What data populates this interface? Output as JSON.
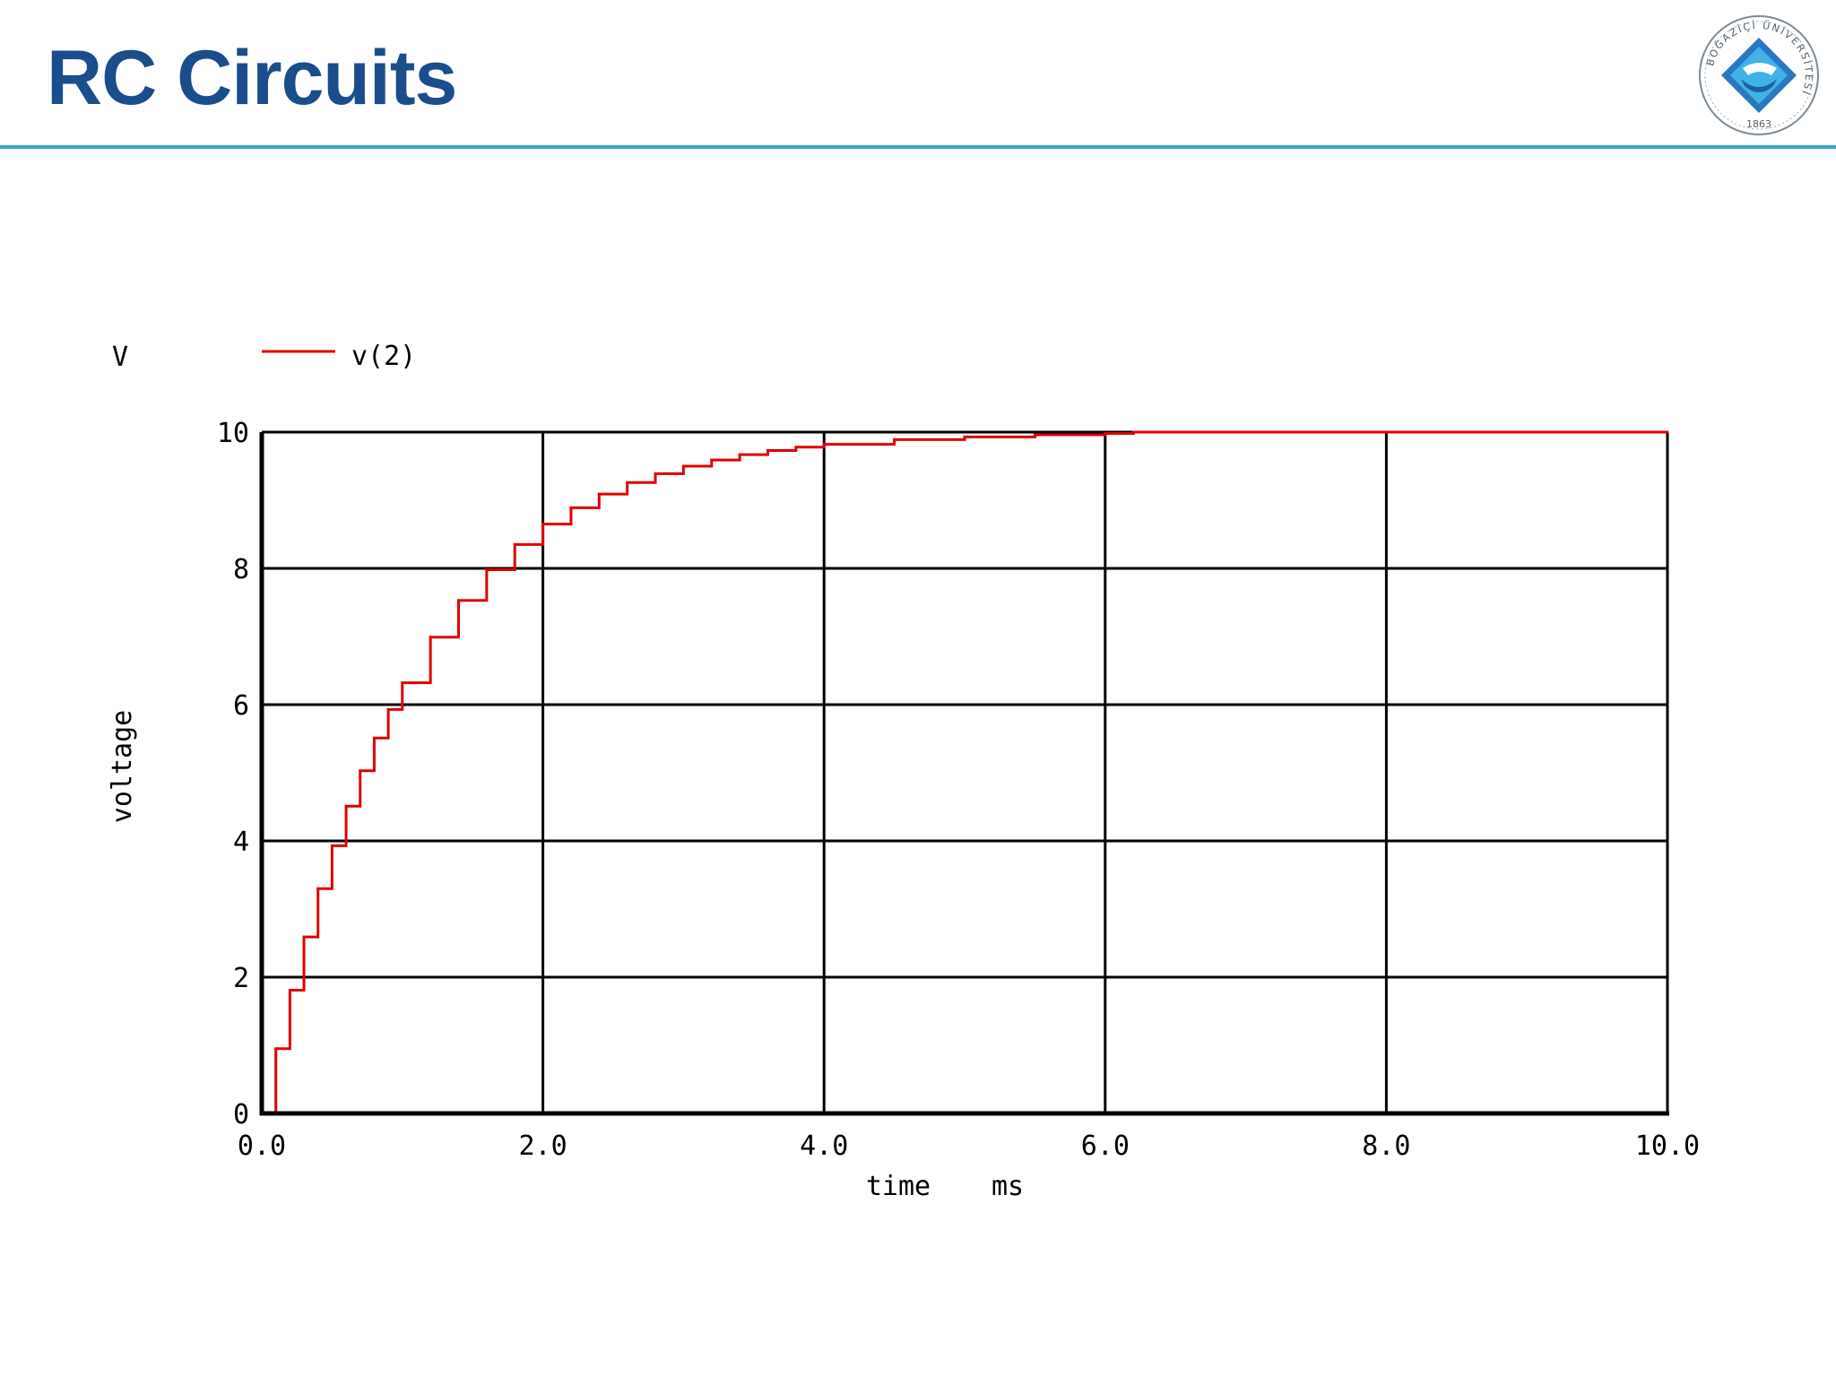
{
  "slide": {
    "title": "RC Circuits",
    "logo_text": "BOĞAZİÇİ ÜNİVERSİTESİ",
    "logo_year": "1863"
  },
  "colors": {
    "title": "#1b4d8c",
    "rule": "#3ba0d5",
    "series": "#e00000",
    "axes": "#000000",
    "logo_blue": "#2a78c0",
    "logo_light": "#3fb3e6"
  },
  "chart_data": {
    "type": "line",
    "unit_label": "V",
    "ylabel": "voltage",
    "xlabel_parts": [
      "time",
      "ms"
    ],
    "xlim": [
      0,
      10
    ],
    "ylim": [
      0,
      10
    ],
    "xticks": [
      0,
      2,
      4,
      6,
      8,
      10
    ],
    "xtick_labels": [
      "0.0",
      "2.0",
      "4.0",
      "6.0",
      "8.0",
      "10.0"
    ],
    "yticks": [
      0,
      2,
      4,
      6,
      8,
      10
    ],
    "ytick_labels": [
      "0",
      "2",
      "4",
      "6",
      "8",
      "10"
    ],
    "grid": true,
    "legend_position": "top-left",
    "series": [
      {
        "name": "v(2)",
        "x": [
          0,
          0.1,
          0.2,
          0.3,
          0.4,
          0.5,
          0.6,
          0.7,
          0.8,
          0.9,
          1.0,
          1.2,
          1.4,
          1.6,
          1.8,
          2.0,
          2.2,
          2.4,
          2.6,
          2.8,
          3.0,
          3.2,
          3.4,
          3.6,
          3.8,
          4.0,
          4.5,
          5.0,
          5.5,
          6.0,
          6.2,
          7.0,
          8.0,
          9.0,
          10.0
        ],
        "y": [
          0,
          0.95,
          1.81,
          2.59,
          3.3,
          3.93,
          4.51,
          5.03,
          5.51,
          5.93,
          6.32,
          6.99,
          7.53,
          7.98,
          8.35,
          8.65,
          8.89,
          9.09,
          9.26,
          9.39,
          9.5,
          9.59,
          9.67,
          9.73,
          9.78,
          9.82,
          9.89,
          9.93,
          9.96,
          9.98,
          10.0,
          10.0,
          10.0,
          10.0,
          10.0
        ]
      }
    ]
  }
}
